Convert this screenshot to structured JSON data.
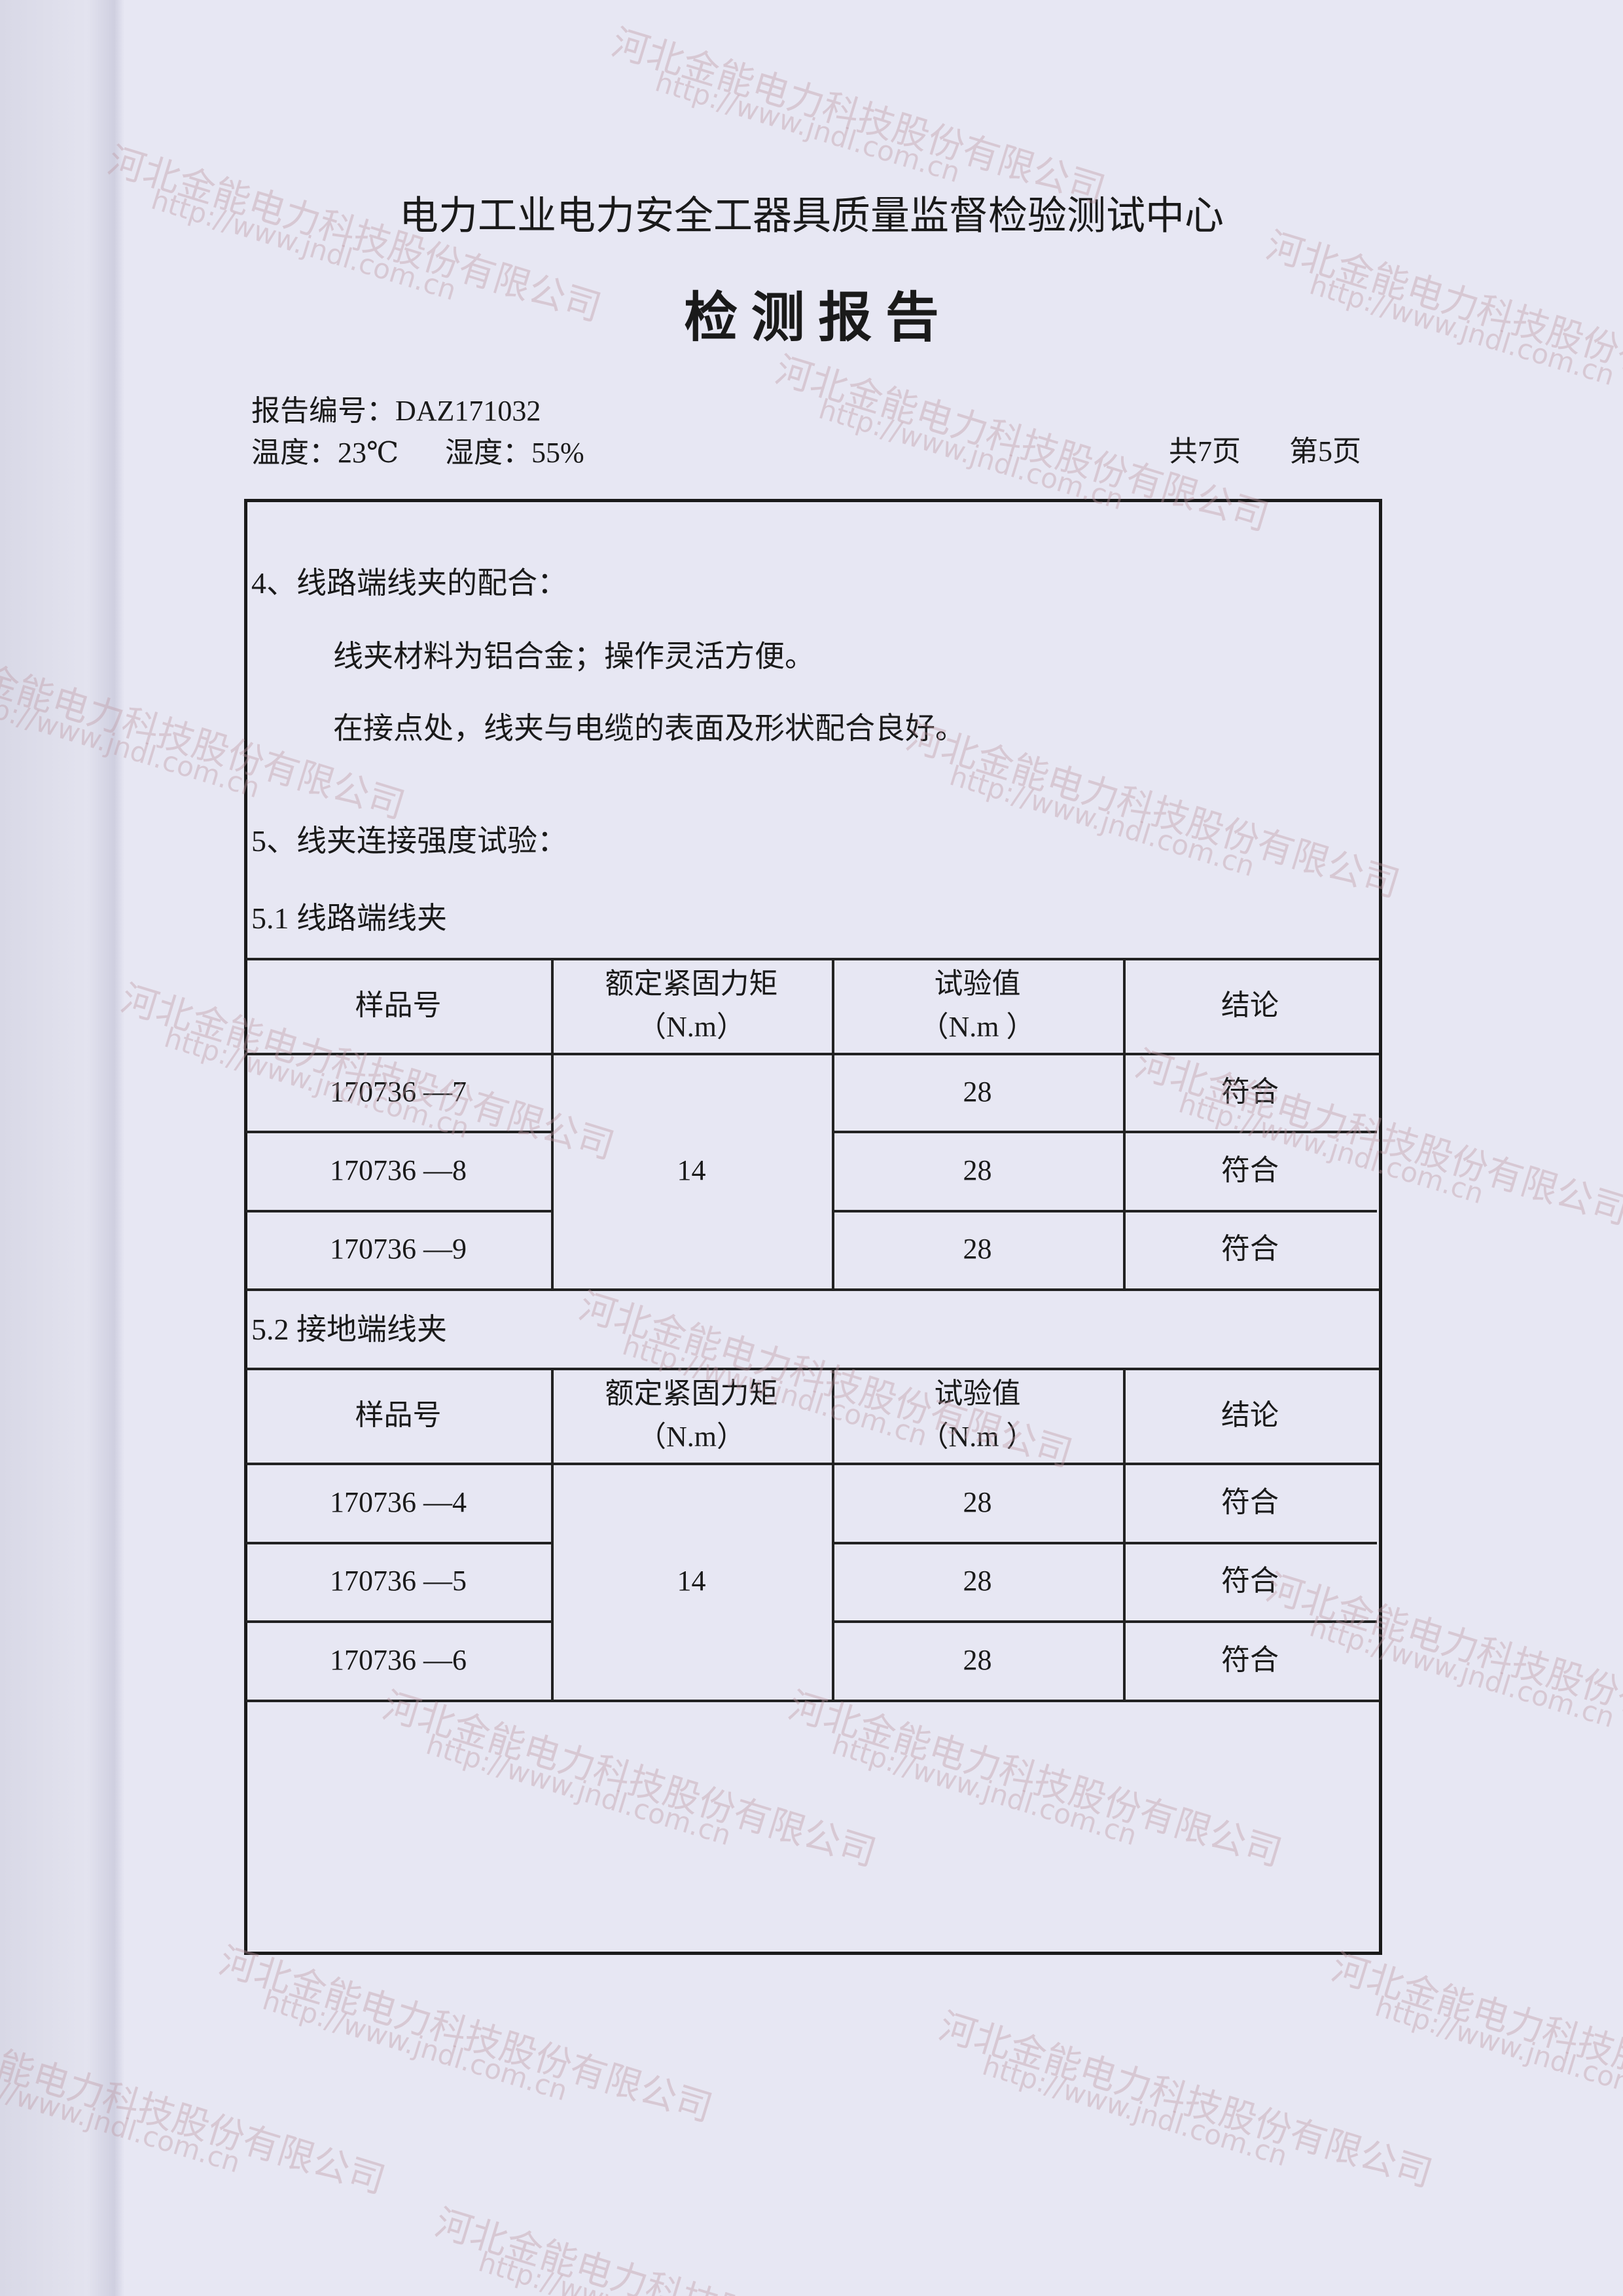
{
  "header": {
    "organization": "电力工业电力安全工器具质量监督检验测试中心",
    "title": "检 测 报 告",
    "report_no": "报告编号：DAZ171032",
    "temperature": "温度：23℃",
    "humidity": "湿度：55%",
    "total_pages": "共7页",
    "page": "第5页"
  },
  "section4": {
    "heading": "4、线路端线夹的配合：",
    "lines": [
      "线夹材料为铝合金；操作灵活方便。",
      "在接点处，线夹与电缆的表面及形状配合良好。"
    ]
  },
  "section5": {
    "heading": "5、线夹连接强度试验：",
    "tables": [
      {
        "caption": "5.1 线路端线夹",
        "columns": [
          [
            "样品号"
          ],
          [
            "额定紧固力矩",
            "（N.m）"
          ],
          [
            "试验值",
            "（N.m ）"
          ],
          [
            "结论"
          ]
        ],
        "rated": "14",
        "rows": [
          [
            "170736 —7",
            "28",
            "符合"
          ],
          [
            "170736 —8",
            "28",
            "符合"
          ],
          [
            "170736 —9",
            "28",
            "符合"
          ]
        ]
      },
      {
        "caption": "5.2 接地端线夹",
        "columns": [
          [
            "样品号"
          ],
          [
            "额定紧固力矩",
            "（N.m）"
          ],
          [
            "试验值",
            "（N.m ）"
          ],
          [
            "结论"
          ]
        ],
        "rated": "14",
        "rows": [
          [
            "170736 —4",
            "28",
            "符合"
          ],
          [
            "170736 —5",
            "28",
            "符合"
          ],
          [
            "170736 —6",
            "28",
            "符合"
          ]
        ]
      }
    ]
  },
  "watermark": {
    "company": "河北金能电力科技股份有限公司",
    "url": "http://www.jndl.com.cn"
  }
}
